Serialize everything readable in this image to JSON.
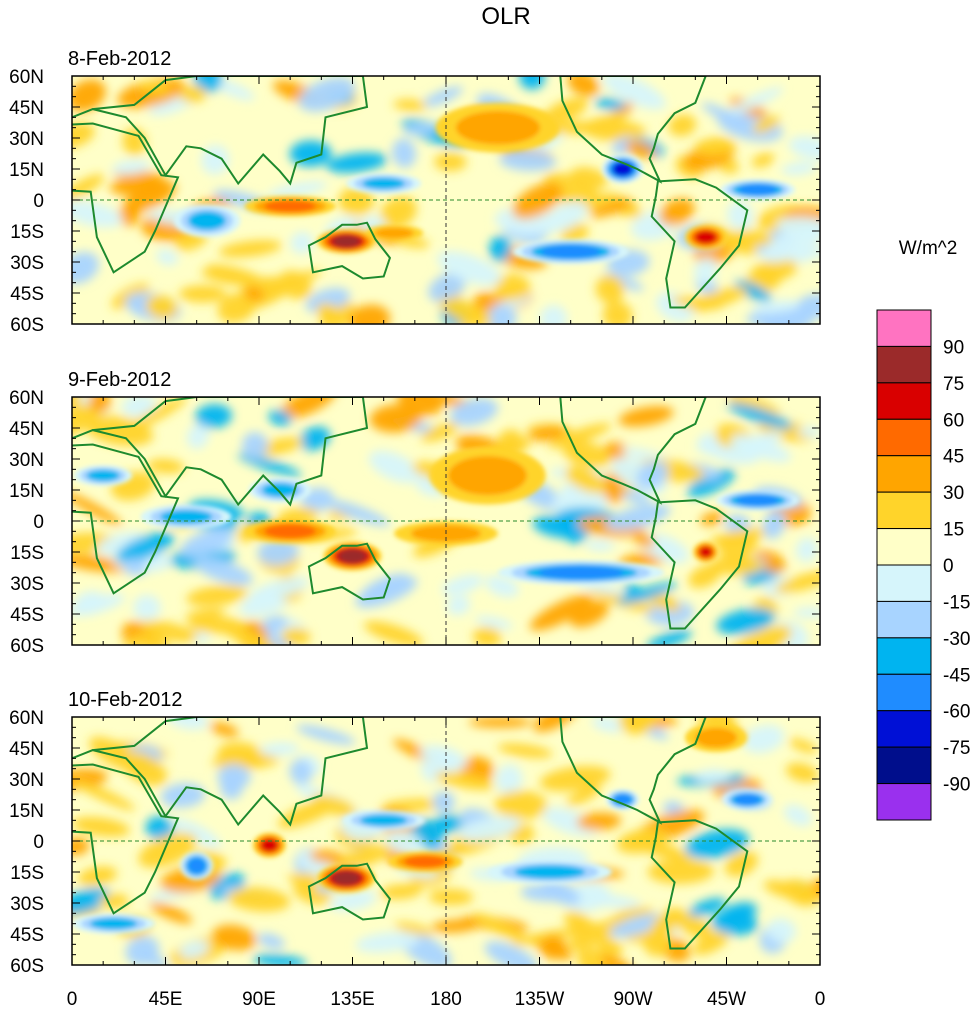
{
  "chart_data": {
    "type": "heatmap",
    "title": "OLR",
    "units": "W/m^2",
    "x_tick_labels": [
      "0",
      "45E",
      "90E",
      "135E",
      "180",
      "135W",
      "90W",
      "45W",
      "0"
    ],
    "x_tick_lons": [
      0,
      45,
      90,
      135,
      180,
      225,
      270,
      315,
      360
    ],
    "y_tick_labels": [
      "60N",
      "45N",
      "30N",
      "15N",
      "0",
      "15S",
      "30S",
      "45S",
      "60S"
    ],
    "y_tick_lats": [
      60,
      45,
      30,
      15,
      0,
      -15,
      -30,
      -45,
      -60
    ],
    "lon_range": [
      0,
      360
    ],
    "lat_range": [
      -60,
      60
    ],
    "colorbar": {
      "levels": [
        90,
        75,
        60,
        45,
        30,
        15,
        0,
        -15,
        -30,
        -45,
        -60,
        -75,
        -90
      ],
      "labels": [
        "90",
        "75",
        "60",
        "45",
        "30",
        "15",
        "0",
        "-15",
        "-30",
        "-45",
        "-60",
        "-75",
        "-90"
      ],
      "colors": [
        "#ff73c1",
        "#9b2a2a",
        "#d90000",
        "#ff6a00",
        "#ffa500",
        "#ffd42a",
        "#ffffc8",
        "#d6f5fb",
        "#a8d4ff",
        "#00b4f0",
        "#1f8cff",
        "#0010d6",
        "#000e8c",
        "#9a30ee"
      ]
    },
    "panels": [
      {
        "date": "8-Feb-2012",
        "anomalies": [
          {
            "lon": 132,
            "lat": -20,
            "value": 75,
            "rx": 14,
            "ry": 6
          },
          {
            "lon": 305,
            "lat": -18,
            "value": 60,
            "rx": 10,
            "ry": 6
          },
          {
            "lon": 105,
            "lat": -3,
            "value": 45,
            "rx": 22,
            "ry": 5
          },
          {
            "lon": 155,
            "lat": -16,
            "value": 30,
            "rx": 14,
            "ry": 4
          },
          {
            "lon": 205,
            "lat": 35,
            "value": 30,
            "rx": 30,
            "ry": 12
          },
          {
            "lon": 265,
            "lat": 15,
            "value": -75,
            "rx": 10,
            "ry": 7
          },
          {
            "lon": 150,
            "lat": 8,
            "value": -45,
            "rx": 18,
            "ry": 5
          },
          {
            "lon": 240,
            "lat": -25,
            "value": -60,
            "rx": 28,
            "ry": 6
          },
          {
            "lon": 65,
            "lat": -10,
            "value": -45,
            "rx": 16,
            "ry": 8
          },
          {
            "lon": 330,
            "lat": 5,
            "value": -60,
            "rx": 18,
            "ry": 5
          }
        ]
      },
      {
        "date": "9-Feb-2012",
        "anomalies": [
          {
            "lon": 135,
            "lat": -17,
            "value": 75,
            "rx": 14,
            "ry": 7
          },
          {
            "lon": 305,
            "lat": -15,
            "value": 60,
            "rx": 6,
            "ry": 5
          },
          {
            "lon": 105,
            "lat": -5,
            "value": 45,
            "rx": 22,
            "ry": 6
          },
          {
            "lon": 200,
            "lat": 22,
            "value": 30,
            "rx": 28,
            "ry": 14
          },
          {
            "lon": 180,
            "lat": -6,
            "value": 30,
            "rx": 25,
            "ry": 6
          },
          {
            "lon": 245,
            "lat": -25,
            "value": -60,
            "rx": 40,
            "ry": 6
          },
          {
            "lon": 330,
            "lat": 10,
            "value": -60,
            "rx": 20,
            "ry": 5
          },
          {
            "lon": 55,
            "lat": 2,
            "value": -45,
            "rx": 22,
            "ry": 6
          },
          {
            "lon": 15,
            "lat": 22,
            "value": -45,
            "rx": 14,
            "ry": 5
          },
          {
            "lon": 100,
            "lat": 15,
            "value": -45,
            "rx": 15,
            "ry": 6
          }
        ]
      },
      {
        "date": "10-Feb-2012",
        "anomalies": [
          {
            "lon": 132,
            "lat": -18,
            "value": 75,
            "rx": 14,
            "ry": 7
          },
          {
            "lon": 95,
            "lat": -2,
            "value": 60,
            "rx": 8,
            "ry": 6
          },
          {
            "lon": 170,
            "lat": -10,
            "value": 45,
            "rx": 18,
            "ry": 5
          },
          {
            "lon": 310,
            "lat": 50,
            "value": 30,
            "rx": 15,
            "ry": 7
          },
          {
            "lon": 265,
            "lat": 20,
            "value": -60,
            "rx": 8,
            "ry": 5
          },
          {
            "lon": 325,
            "lat": 20,
            "value": -60,
            "rx": 12,
            "ry": 5
          },
          {
            "lon": 60,
            "lat": -12,
            "value": -60,
            "rx": 8,
            "ry": 7
          },
          {
            "lon": 230,
            "lat": -15,
            "value": -45,
            "rx": 30,
            "ry": 6
          },
          {
            "lon": 20,
            "lat": -40,
            "value": -45,
            "rx": 20,
            "ry": 5
          },
          {
            "lon": 150,
            "lat": 10,
            "value": -45,
            "rx": 20,
            "ry": 5
          }
        ]
      }
    ]
  }
}
